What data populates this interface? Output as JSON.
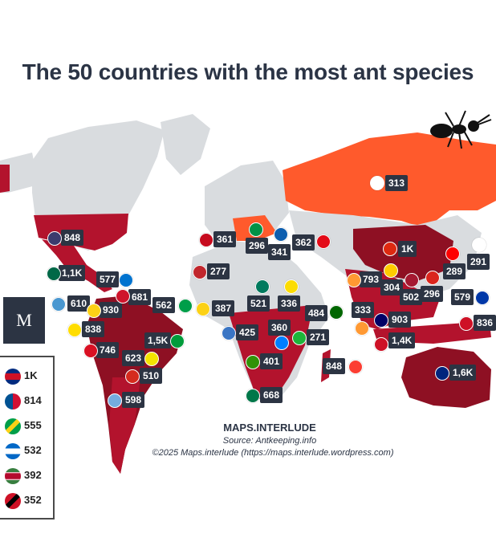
{
  "title": "The 50 countries with the most ant species",
  "brand": "MAPS.INTERLUDE",
  "source": "Source: Antkeeping.info",
  "copyright": "©2025 Maps.interlude (https://maps.interlude.wordpress.com)",
  "logo_text": "M",
  "colors": {
    "dark": "#8e1023",
    "mid": "#b3132d",
    "orange": "#ff5a2c",
    "grey": "#d9dcdf",
    "label_bg": "#2c3443"
  },
  "labels": [
    {
      "value": "313",
      "flag": "#e8e8f0"
    },
    {
      "value": "848",
      "flag": "#3c3b6e"
    },
    {
      "value": "361",
      "flag": "#c60b1e"
    },
    {
      "value": "296",
      "flag": "#009246"
    },
    {
      "value": "341",
      "flag": "#0d5eaf"
    },
    {
      "value": "362",
      "flag": "#e30a17"
    },
    {
      "value": "1K",
      "flag": "#de2910"
    },
    {
      "value": "291",
      "flag": "#ffffff"
    },
    {
      "value": "289",
      "flag": "#fe0000"
    },
    {
      "value": "277",
      "flag": "#c1272d"
    },
    {
      "value": "1,1K",
      "flag": "#006847"
    },
    {
      "value": "577",
      "flag": "#0073cf"
    },
    {
      "value": "793",
      "flag": "#ff9933"
    },
    {
      "value": "304",
      "flag": "#fecb00"
    },
    {
      "value": "502",
      "flag": "#a51931"
    },
    {
      "value": "296",
      "flag": "#da251d"
    },
    {
      "value": "579",
      "flag": "#0038a8"
    },
    {
      "value": "610",
      "flag": "#4997d0"
    },
    {
      "value": "930",
      "flag": "#fcd116"
    },
    {
      "value": "681",
      "flag": "#cf142b"
    },
    {
      "value": "562",
      "flag": "#009e49"
    },
    {
      "value": "387",
      "flag": "#fcd116"
    },
    {
      "value": "521",
      "flag": "#007a5e"
    },
    {
      "value": "336",
      "flag": "#fcdc04"
    },
    {
      "value": "484",
      "flag": "#006600"
    },
    {
      "value": "333",
      "flag": "#ff9933"
    },
    {
      "value": "903",
      "flag": "#010066"
    },
    {
      "value": "836",
      "flag": "#ce1126"
    },
    {
      "value": "838",
      "flag": "#ffdd00"
    },
    {
      "value": "1,5K",
      "flag": "#009c3b"
    },
    {
      "value": "425",
      "flag": "#3a75c4"
    },
    {
      "value": "360",
      "flag": "#007fff"
    },
    {
      "value": "271",
      "flag": "#1eb53a"
    },
    {
      "value": "1,4K",
      "flag": "#ce1126"
    },
    {
      "value": "746",
      "flag": "#d91023"
    },
    {
      "value": "623",
      "flag": "#f4e400"
    },
    {
      "value": "510",
      "flag": "#d52b1e"
    },
    {
      "value": "401",
      "flag": "#319208"
    },
    {
      "value": "848",
      "flag": "#fc3d32"
    },
    {
      "value": "1,6K",
      "flag": "#00247d"
    },
    {
      "value": "598",
      "flag": "#74acdf"
    },
    {
      "value": "668",
      "flag": "#007749"
    }
  ],
  "legend": [
    {
      "value": "1K",
      "flag": "#002b7f",
      "flag2": "#ce1126"
    },
    {
      "value": "814",
      "flag": "#005293",
      "flag2": "#d21034"
    },
    {
      "value": "555",
      "flag": "#009e49",
      "flag2": "#fcd116"
    },
    {
      "value": "532",
      "flag": "#0067c6",
      "flag2": "#ffffff"
    },
    {
      "value": "392",
      "flag": "#377e3f",
      "flag2": "#b40a2d"
    },
    {
      "value": "352",
      "flag": "#ce1126",
      "flag2": "#000000"
    }
  ]
}
